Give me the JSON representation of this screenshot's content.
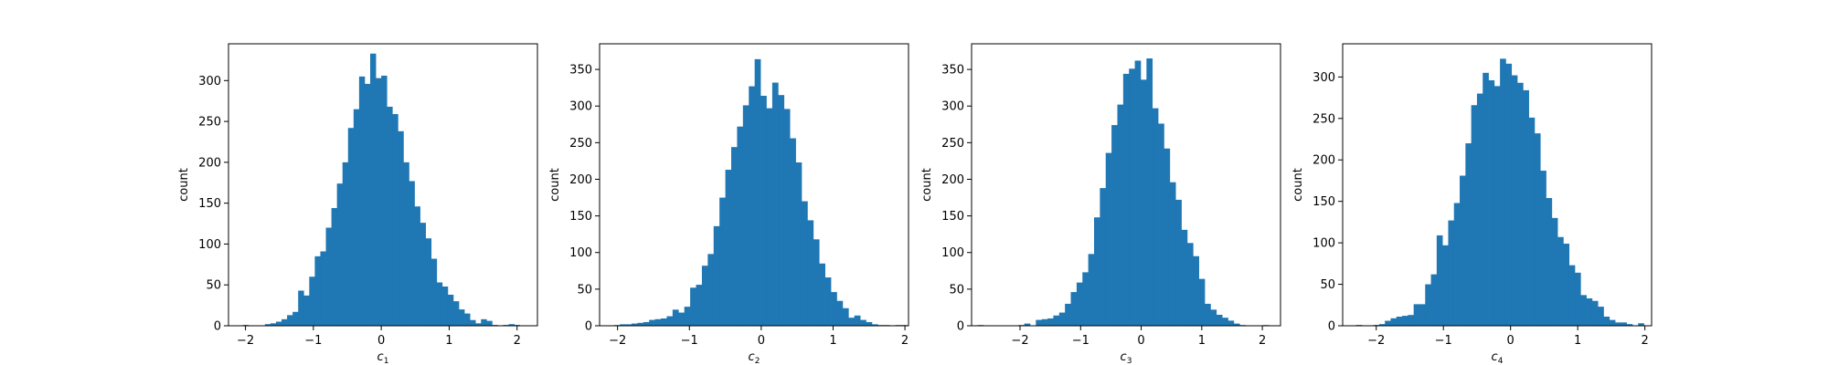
{
  "colors": {
    "bar": "#1f77b4",
    "axes": "#000000",
    "background": "#ffffff"
  },
  "chart_data": [
    {
      "type": "bar",
      "subtype": "histogram",
      "xlabel": {
        "base": "c",
        "sub": "1"
      },
      "ylabel": "count",
      "xlim": [
        -2.25,
        2.3
      ],
      "ylim": [
        0,
        345
      ],
      "xticks": [
        -2,
        -1,
        0,
        1,
        2
      ],
      "xtick_labels": [
        "−2",
        "−1",
        "0",
        "1",
        "2"
      ],
      "yticks": [
        0,
        50,
        100,
        150,
        200,
        250,
        300
      ],
      "ytick_labels": [
        "0",
        "50",
        "100",
        "150",
        "200",
        "250",
        "300"
      ],
      "bin_start": -2.04,
      "bin_width": 0.0816,
      "values": [
        1,
        0,
        0,
        0,
        2,
        3,
        5,
        8,
        13,
        17,
        43,
        37,
        60,
        85,
        91,
        120,
        144,
        174,
        200,
        242,
        265,
        305,
        296,
        333,
        303,
        306,
        268,
        259,
        238,
        200,
        177,
        146,
        126,
        107,
        82,
        53,
        48,
        38,
        30,
        20,
        15,
        7,
        3,
        8,
        6,
        1,
        0,
        1,
        2,
        1
      ]
    },
    {
      "type": "bar",
      "subtype": "histogram",
      "xlabel": {
        "base": "c",
        "sub": "2"
      },
      "ylabel": "count",
      "xlim": [
        -2.25,
        2.05
      ],
      "ylim": [
        0,
        385
      ],
      "xticks": [
        -2,
        -1,
        0,
        1,
        2
      ],
      "xtick_labels": [
        "−2",
        "−1",
        "0",
        "1",
        "2"
      ],
      "yticks": [
        0,
        50,
        100,
        150,
        200,
        250,
        300,
        350
      ],
      "ytick_labels": [
        "0",
        "50",
        "100",
        "150",
        "200",
        "250",
        "300",
        "350"
      ],
      "bin_start": -2.05,
      "bin_width": 0.0816,
      "values": [
        1,
        2,
        2,
        3,
        4,
        5,
        8,
        9,
        10,
        13,
        22,
        18,
        26,
        52,
        56,
        82,
        98,
        136,
        175,
        213,
        244,
        272,
        301,
        327,
        364,
        314,
        297,
        332,
        315,
        296,
        256,
        223,
        170,
        144,
        118,
        85,
        66,
        46,
        34,
        24,
        11,
        14,
        8,
        5,
        2,
        1,
        1,
        0,
        1,
        1
      ]
    },
    {
      "type": "bar",
      "subtype": "histogram",
      "xlabel": {
        "base": "c",
        "sub": "3"
      },
      "ylabel": "count",
      "xlim": [
        -2.8,
        2.3
      ],
      "ylim": [
        0,
        385
      ],
      "xticks": [
        -2,
        -1,
        0,
        1,
        2
      ],
      "xtick_labels": [
        "−2",
        "−1",
        "0",
        "1",
        "2"
      ],
      "yticks": [
        0,
        50,
        100,
        150,
        200,
        250,
        300,
        350
      ],
      "ytick_labels": [
        "0",
        "50",
        "100",
        "150",
        "200",
        "250",
        "300",
        "350"
      ],
      "bin_start": -2.7,
      "bin_width": 0.0961,
      "values": [
        1,
        0,
        0,
        0,
        0,
        0,
        0,
        1,
        3,
        0,
        8,
        9,
        10,
        14,
        18,
        30,
        46,
        59,
        73,
        98,
        148,
        188,
        236,
        274,
        302,
        344,
        351,
        362,
        336,
        365,
        297,
        276,
        242,
        196,
        172,
        131,
        113,
        95,
        64,
        30,
        22,
        15,
        11,
        7,
        3,
        1,
        0,
        0,
        0,
        1
      ]
    },
    {
      "type": "bar",
      "subtype": "histogram",
      "xlabel": {
        "base": "c",
        "sub": "4"
      },
      "ylabel": "count",
      "xlim": [
        -2.5,
        2.1
      ],
      "ylim": [
        0,
        340
      ],
      "xticks": [
        -2,
        -1,
        0,
        1,
        2
      ],
      "xtick_labels": [
        "−2",
        "−1",
        "0",
        "1",
        "2"
      ],
      "yticks": [
        0,
        50,
        100,
        150,
        200,
        250,
        300
      ],
      "ytick_labels": [
        "0",
        "50",
        "100",
        "150",
        "200",
        "250",
        "300"
      ],
      "bin_start": -2.3,
      "bin_width": 0.0857,
      "values": [
        1,
        0,
        0,
        1,
        2,
        6,
        9,
        11,
        12,
        13,
        26,
        26,
        50,
        62,
        109,
        97,
        127,
        148,
        181,
        220,
        266,
        280,
        305,
        296,
        289,
        322,
        316,
        302,
        293,
        284,
        251,
        232,
        187,
        154,
        130,
        107,
        99,
        73,
        64,
        37,
        33,
        30,
        23,
        11,
        7,
        4,
        4,
        2,
        0,
        3
      ]
    }
  ]
}
